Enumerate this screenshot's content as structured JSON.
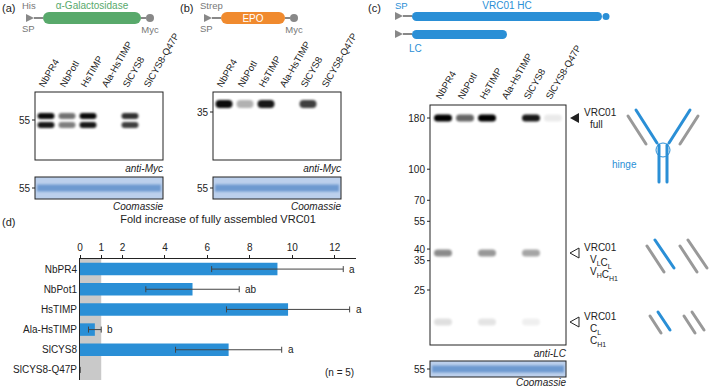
{
  "figure": {
    "panels": [
      {
        "label": "(a)",
        "construct": {
          "tag": "His",
          "signal_peptide": "SP",
          "protein": "α-Galactosidase",
          "protein_color": "#58a96b",
          "epitope": "Myc"
        },
        "lanes": [
          "NbPR4",
          "NbPotI",
          "HsTIMP",
          "Ala-HsTIMP",
          "SlCYS8",
          "SlCYS8-Q47P"
        ],
        "blot": {
          "size_markers": [
            55
          ],
          "antibody": "anti-Myc"
        },
        "loading_control": {
          "size_markers": [
            55
          ],
          "stain": "Coomassie"
        }
      },
      {
        "label": "(b)",
        "construct": {
          "tag": "Strep",
          "signal_peptide": "SP",
          "protein": "EPO",
          "protein_color": "#f08a2e",
          "epitope": "Myc"
        },
        "lanes": [
          "NbPR4",
          "NbPotI",
          "HsTIMP",
          "Ala-HsTIMP",
          "SlCYS8",
          "SlCYS8-Q47P"
        ],
        "blot": {
          "size_markers": [
            35
          ],
          "antibody": "anti-Myc"
        },
        "loading_control": {
          "size_markers": [
            55
          ],
          "stain": "Coomassie"
        }
      },
      {
        "label": "(c)",
        "construct": {
          "signal_peptide": "SP",
          "heavy_chain": "VRC01 HC",
          "light_chain": "LC",
          "color": "#2a8fd6"
        },
        "lanes": [
          "NbPR4",
          "NbPotI",
          "HsTIMP",
          "Ala-HsTIMP",
          "SlCYS8",
          "SlCYS8-Q47P"
        ],
        "blot": {
          "size_markers": [
            180,
            100,
            70,
            55,
            40,
            35,
            25
          ],
          "antibody": "anti-LC",
          "products": [
            {
              "name": "VRC01",
              "marker": "filled",
              "lines": [
                [
                  {
                    "text": "full"
                  }
                ]
              ],
              "annotation": "hinge"
            },
            {
              "name": "VRC01",
              "marker": "open",
              "lines": [
                [
                  {
                    "text": "V",
                    "sub": "L"
                  },
                  {
                    "text": "C",
                    "sub": "L"
                  }
                ],
                [
                  {
                    "text": "V",
                    "sub": "H"
                  },
                  {
                    "text": "C",
                    "sub": "H1"
                  }
                ]
              ]
            },
            {
              "name": "VRC01",
              "marker": "open",
              "lines": [
                [
                  {
                    "text": "C",
                    "sub": "L"
                  }
                ],
                [
                  {
                    "text": "C",
                    "sub": "H1"
                  }
                ]
              ]
            }
          ]
        },
        "loading_control": {
          "size_markers": [
            55
          ],
          "stain": "Coomassie"
        }
      }
    ]
  },
  "chart_data": {
    "type": "bar",
    "panel_label": "(d)",
    "orientation": "horizontal",
    "title": "Fold increase of fully assembled VRC01",
    "categories": [
      "NbPR4",
      "NbPot1",
      "HsTIMP",
      "Ala-HsTIMP",
      "SlCYS8",
      "SlCYS8-Q47P"
    ],
    "values": [
      9.3,
      5.3,
      9.8,
      0.7,
      7.0,
      0
    ],
    "errors": [
      3.1,
      2.2,
      2.9,
      0.3,
      2.5,
      0
    ],
    "letters": [
      "a",
      "ab",
      "a",
      "b",
      "a",
      null
    ],
    "annotation": "(n = 5)",
    "color": "#2a8fd6",
    "xlim": [
      0,
      13
    ],
    "xticks": [
      0,
      1,
      2,
      4,
      6,
      8,
      10,
      12
    ],
    "grid": false
  }
}
